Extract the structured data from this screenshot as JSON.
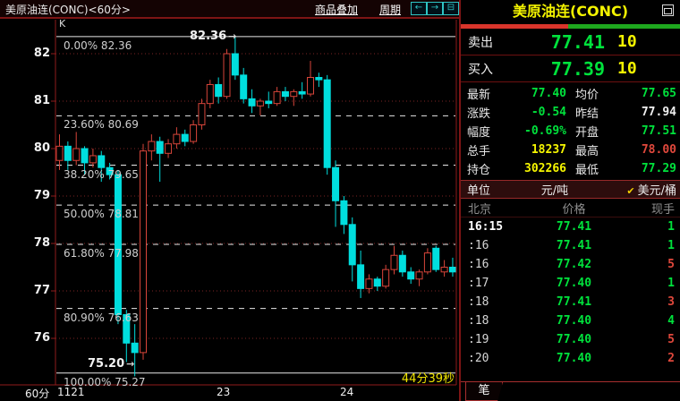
{
  "top_bar": {
    "title": "美原油连(CONC)<60分>",
    "overlay_link": "商品叠加",
    "period_link": "周期"
  },
  "icons": {
    "left_arrow": "←",
    "right_arrow": "→",
    "tile_windows": "⊟",
    "check": "✔",
    "annotation_arrow": "→"
  },
  "quote_panel": {
    "title": "美原油连(CONC)",
    "ratio_bar": {
      "red_pct": 49,
      "green_pct": 51,
      "red": "#d9352b",
      "green": "#1ea81e"
    },
    "ask": {
      "label": "卖出",
      "price": "77.41",
      "size": "10"
    },
    "bid": {
      "label": "买入",
      "price": "77.39",
      "size": "10"
    },
    "stats": [
      {
        "label": "最新",
        "value": "77.40",
        "color": "green",
        "label2": "均价",
        "value2": "77.65",
        "color2": "green"
      },
      {
        "label": "涨跌",
        "value": "-0.54",
        "color": "green",
        "label2": "昨结",
        "value2": "77.94",
        "color2": "white"
      },
      {
        "label": "幅度",
        "value": "-0.69%",
        "color": "green",
        "label2": "开盘",
        "value2": "77.51",
        "color2": "green"
      },
      {
        "label": "总手",
        "value": "18237",
        "color": "yellow",
        "label2": "最高",
        "value2": "78.00",
        "color2": "red"
      },
      {
        "label": "持仓",
        "value": "302266",
        "color": "yellow",
        "label2": "最低",
        "value2": "77.29",
        "color2": "green"
      }
    ],
    "unit_row": {
      "label": "单位",
      "option1": "元/吨",
      "option2": "美元/桶"
    },
    "tick_table": {
      "headers": [
        "北京",
        "价格",
        "现手"
      ],
      "rows": [
        {
          "time": "16:15",
          "price": "77.41",
          "vol": "1",
          "vol_color": "green",
          "first": true
        },
        {
          "time": ":16",
          "price": "77.41",
          "vol": "1",
          "vol_color": "green",
          "first": false
        },
        {
          "time": ":16",
          "price": "77.42",
          "vol": "5",
          "vol_color": "red",
          "first": false
        },
        {
          "time": ":17",
          "price": "77.40",
          "vol": "1",
          "vol_color": "green",
          "first": false
        },
        {
          "time": ":18",
          "price": "77.41",
          "vol": "3",
          "vol_color": "red",
          "first": false
        },
        {
          "time": ":18",
          "price": "77.40",
          "vol": "4",
          "vol_color": "green",
          "first": false
        },
        {
          "time": ":19",
          "price": "77.40",
          "vol": "5",
          "vol_color": "red",
          "first": false
        },
        {
          "time": ":20",
          "price": "77.40",
          "vol": "2",
          "vol_color": "red",
          "first": false
        }
      ]
    },
    "bottom_tab": "笔"
  },
  "chart": {
    "k_label": "K",
    "y_ticks": [
      "82",
      "81",
      "80",
      "79",
      "78",
      "77",
      "76"
    ],
    "high_annotation": "82.36",
    "low_annotation": "75.20",
    "countdown": "44分39秒",
    "x_axis": {
      "period": "60分",
      "labels": [
        {
          "text": "1121",
          "x": 64
        },
        {
          "text": "23",
          "x": 242
        },
        {
          "text": "24",
          "x": 380
        }
      ]
    }
  },
  "chart_data": {
    "type": "candlestick",
    "title": "美原油连(CONC) 60分 K线",
    "interval": "60分",
    "ylim": [
      75.0,
      82.75
    ],
    "high": 82.36,
    "low": 75.2,
    "last": 77.4,
    "fib_levels": [
      {
        "label": "0.00% 82.36",
        "value": 82.36,
        "style": "solid"
      },
      {
        "label": "23.60% 80.69",
        "value": 80.69,
        "style": "dashed"
      },
      {
        "label": "38.20% 79.65",
        "value": 79.65,
        "style": "dashed"
      },
      {
        "label": "50.00% 78.81",
        "value": 78.81,
        "style": "dashed"
      },
      {
        "label": "61.80% 77.98",
        "value": 77.98,
        "style": "dashed"
      },
      {
        "label": "80.90% 76.63",
        "value": 76.63,
        "style": "dashed"
      },
      {
        "label": "100.00% 75.27",
        "value": 75.27,
        "style": "solid"
      }
    ],
    "up_color": "#d8453a",
    "down_color": "#00dede",
    "candles": [
      [
        79.75,
        80.3,
        79.55,
        80.05
      ],
      [
        80.05,
        80.15,
        79.55,
        79.75
      ],
      [
        79.75,
        80.35,
        79.65,
        80.0
      ],
      [
        80.0,
        80.05,
        79.45,
        79.7
      ],
      [
        79.7,
        80.0,
        79.6,
        79.85
      ],
      [
        79.85,
        79.95,
        79.3,
        79.6
      ],
      [
        79.6,
        79.7,
        79.35,
        79.45
      ],
      [
        79.45,
        79.55,
        76.3,
        76.5
      ],
      [
        76.5,
        76.6,
        75.5,
        75.9
      ],
      [
        75.9,
        76.3,
        75.2,
        75.7
      ],
      [
        75.7,
        80.1,
        75.55,
        79.95
      ],
      [
        79.95,
        80.3,
        79.75,
        80.15
      ],
      [
        80.15,
        80.25,
        79.3,
        79.9
      ],
      [
        79.9,
        80.2,
        79.8,
        80.1
      ],
      [
        80.1,
        80.45,
        80.0,
        80.3
      ],
      [
        80.3,
        80.4,
        80.05,
        80.15
      ],
      [
        80.15,
        80.6,
        80.1,
        80.5
      ],
      [
        80.5,
        81.05,
        80.4,
        80.95
      ],
      [
        80.95,
        81.45,
        80.85,
        81.35
      ],
      [
        81.35,
        81.5,
        80.95,
        81.1
      ],
      [
        81.1,
        82.1,
        81.05,
        82.0
      ],
      [
        82.0,
        82.36,
        81.45,
        81.55
      ],
      [
        81.55,
        81.7,
        80.95,
        81.05
      ],
      [
        81.05,
        81.25,
        80.75,
        80.9
      ],
      [
        80.9,
        81.05,
        80.7,
        81.0
      ],
      [
        81.0,
        81.2,
        80.85,
        80.95
      ],
      [
        80.95,
        81.3,
        80.9,
        81.2
      ],
      [
        81.2,
        81.3,
        81.0,
        81.1
      ],
      [
        81.1,
        81.25,
        80.9,
        81.2
      ],
      [
        81.2,
        81.4,
        81.05,
        81.15
      ],
      [
        81.15,
        81.85,
        81.1,
        81.5
      ],
      [
        81.5,
        81.6,
        81.3,
        81.45
      ],
      [
        81.45,
        81.55,
        79.45,
        79.6
      ],
      [
        79.6,
        79.75,
        78.35,
        78.9
      ],
      [
        78.9,
        79.0,
        78.2,
        78.4
      ],
      [
        78.4,
        78.55,
        77.2,
        77.55
      ],
      [
        77.55,
        77.85,
        76.85,
        77.05
      ],
      [
        77.05,
        77.35,
        76.95,
        77.25
      ],
      [
        77.25,
        77.3,
        77.0,
        77.1
      ],
      [
        77.1,
        77.55,
        77.05,
        77.45
      ],
      [
        77.45,
        77.95,
        77.35,
        77.75
      ],
      [
        77.75,
        77.85,
        77.3,
        77.4
      ],
      [
        77.4,
        77.5,
        77.15,
        77.25
      ],
      [
        77.25,
        77.45,
        77.1,
        77.4
      ],
      [
        77.4,
        77.9,
        77.35,
        77.8
      ],
      [
        77.9,
        77.95,
        77.4,
        77.45
      ],
      [
        77.4,
        77.65,
        77.3,
        77.5
      ],
      [
        77.5,
        77.7,
        77.3,
        77.4
      ]
    ]
  }
}
